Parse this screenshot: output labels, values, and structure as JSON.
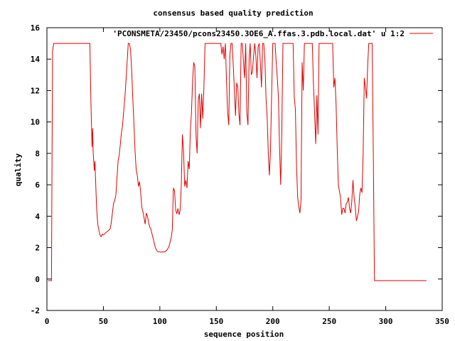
{
  "chart_data": {
    "type": "line",
    "title": "consensus based quality prediction",
    "xlabel": "sequence position",
    "ylabel": "quality",
    "xlim": [
      0,
      350
    ],
    "ylim": [
      -2,
      16
    ],
    "xticks": [
      0,
      50,
      100,
      150,
      200,
      250,
      300,
      350
    ],
    "yticks": [
      -2,
      0,
      2,
      4,
      6,
      8,
      10,
      12,
      14,
      16
    ],
    "grid": false,
    "legend_position": "top-right",
    "series": [
      {
        "name": "'PCONSMETA/23450/pcons23450.3OE6_A.ffas.3.pdb.local.dat' u 1:2",
        "color": "#e00000",
        "points": [
          [
            1,
            -0.1
          ],
          [
            4,
            -0.1
          ],
          [
            5,
            14.5
          ],
          [
            6,
            15
          ],
          [
            38,
            15
          ],
          [
            39,
            11
          ],
          [
            40,
            8.4
          ],
          [
            40.5,
            9.6
          ],
          [
            41,
            8
          ],
          [
            42,
            6.9
          ],
          [
            42.5,
            7.5
          ],
          [
            43,
            6.5
          ],
          [
            44,
            4.5
          ],
          [
            45,
            3.5
          ],
          [
            46,
            3.1
          ],
          [
            47,
            2.8
          ],
          [
            48,
            2.7
          ],
          [
            49,
            2.85
          ],
          [
            50,
            2.8
          ],
          [
            52,
            2.95
          ],
          [
            54,
            3.05
          ],
          [
            56,
            3.2
          ],
          [
            57,
            3.6
          ],
          [
            58,
            4.2
          ],
          [
            59,
            4.8
          ],
          [
            60,
            5.0
          ],
          [
            61,
            5.3
          ],
          [
            62,
            6.4
          ],
          [
            63,
            7.5
          ],
          [
            64,
            7.9
          ],
          [
            65,
            8.6
          ],
          [
            66,
            9.3
          ],
          [
            67,
            9.8
          ],
          [
            68,
            10.7
          ],
          [
            69,
            11.5
          ],
          [
            70,
            12.6
          ],
          [
            71,
            13.8
          ],
          [
            72,
            15
          ],
          [
            73,
            15
          ],
          [
            74,
            14.6
          ],
          [
            75,
            13.4
          ],
          [
            76,
            11.6
          ],
          [
            77,
            10.0
          ],
          [
            78,
            8.2
          ],
          [
            79,
            7.0
          ],
          [
            80,
            6.6
          ],
          [
            81,
            5.9
          ],
          [
            82,
            6.2
          ],
          [
            83,
            5.5
          ],
          [
            84,
            4.6
          ],
          [
            85,
            4.3
          ],
          [
            86,
            3.9
          ],
          [
            87,
            3.5
          ],
          [
            88,
            4.2
          ],
          [
            89,
            4.0
          ],
          [
            90,
            3.6
          ],
          [
            91,
            3.3
          ],
          [
            92,
            3.2
          ],
          [
            93,
            2.9
          ],
          [
            94,
            2.6
          ],
          [
            95,
            2.3
          ],
          [
            96,
            2.0
          ],
          [
            97,
            1.85
          ],
          [
            98,
            1.75
          ],
          [
            100,
            1.72
          ],
          [
            104,
            1.72
          ],
          [
            106,
            1.82
          ],
          [
            108,
            2.05
          ],
          [
            110,
            2.6
          ],
          [
            111,
            3.1
          ],
          [
            112,
            5.8
          ],
          [
            113,
            5.6
          ],
          [
            114,
            4.4
          ],
          [
            115,
            4.15
          ],
          [
            116,
            4.5
          ],
          [
            117,
            4.1
          ],
          [
            118,
            4.4
          ],
          [
            119,
            6.0
          ],
          [
            120,
            9.2
          ],
          [
            121,
            8.1
          ],
          [
            122,
            5.9
          ],
          [
            123,
            6.3
          ],
          [
            124,
            5.8
          ],
          [
            125,
            7.5
          ],
          [
            126,
            7.0
          ],
          [
            127,
            9.4
          ],
          [
            128,
            10.6
          ],
          [
            129,
            12.6
          ],
          [
            130,
            13.8
          ],
          [
            131,
            13.5
          ],
          [
            132,
            9.2
          ],
          [
            133,
            8.0
          ],
          [
            134,
            11.4
          ],
          [
            135,
            11.8
          ],
          [
            136,
            9.6
          ],
          [
            137,
            11.8
          ],
          [
            138,
            10.2
          ],
          [
            139,
            12.2
          ],
          [
            140,
            15
          ],
          [
            154,
            15
          ],
          [
            155,
            14.3
          ],
          [
            156,
            14.8
          ],
          [
            157,
            14.0
          ],
          [
            158,
            15
          ],
          [
            159,
            12.6
          ],
          [
            160,
            10.6
          ],
          [
            161,
            9.8
          ],
          [
            162,
            14.2
          ],
          [
            163,
            15
          ],
          [
            164,
            15
          ],
          [
            165,
            13.6
          ],
          [
            166,
            12.0
          ],
          [
            167,
            10.4
          ],
          [
            168,
            12.5
          ],
          [
            169,
            12.2
          ],
          [
            170,
            10.5
          ],
          [
            171,
            9.8
          ],
          [
            172,
            15
          ],
          [
            173,
            15
          ],
          [
            174,
            13.9
          ],
          [
            175,
            12.8
          ],
          [
            176,
            15
          ],
          [
            177,
            10.6
          ],
          [
            178,
            9.8
          ],
          [
            179,
            14.0
          ],
          [
            180,
            15
          ],
          [
            181,
            13.0
          ],
          [
            182,
            13.2
          ],
          [
            183,
            14.2
          ],
          [
            184,
            15
          ],
          [
            185,
            14.2
          ],
          [
            186,
            12.8
          ],
          [
            187,
            14.8
          ],
          [
            188,
            15
          ],
          [
            189,
            13.8
          ],
          [
            190,
            12.2
          ],
          [
            191,
            15
          ],
          [
            192,
            15
          ],
          [
            193,
            14.0
          ],
          [
            194,
            11.5
          ],
          [
            195,
            10.3
          ],
          [
            196,
            8.0
          ],
          [
            197,
            6.6
          ],
          [
            198,
            8.2
          ],
          [
            199,
            11.8
          ],
          [
            200,
            15
          ],
          [
            202,
            15
          ],
          [
            203,
            13.8
          ],
          [
            204,
            12.8
          ],
          [
            205,
            11.5
          ],
          [
            206,
            8.4
          ],
          [
            207,
            6.0
          ],
          [
            208,
            9.4
          ],
          [
            209,
            15
          ],
          [
            210,
            15
          ],
          [
            218,
            15
          ],
          [
            219,
            11.6
          ],
          [
            220,
            10.8
          ],
          [
            221,
            7.2
          ],
          [
            222,
            5.2
          ],
          [
            223,
            4.6
          ],
          [
            224,
            4.2
          ],
          [
            225,
            5.0
          ],
          [
            226,
            13.8
          ],
          [
            227,
            12.0
          ],
          [
            228,
            15
          ],
          [
            235,
            15
          ],
          [
            236,
            12.4
          ],
          [
            237,
            10.6
          ],
          [
            238,
            8.6
          ],
          [
            239,
            11.7
          ],
          [
            240,
            9.2
          ],
          [
            241,
            15
          ],
          [
            242,
            15
          ],
          [
            253,
            15
          ],
          [
            254,
            12.2
          ],
          [
            255,
            12.8
          ],
          [
            256,
            11.2
          ],
          [
            257,
            8.4
          ],
          [
            258,
            6.0
          ],
          [
            259,
            5.6
          ],
          [
            260,
            5.2
          ],
          [
            261,
            4.1
          ],
          [
            262,
            4.5
          ],
          [
            263,
            4.5
          ],
          [
            264,
            4.2
          ],
          [
            265,
            4.8
          ],
          [
            266,
            4.9
          ],
          [
            267,
            5.2
          ],
          [
            268,
            4.5
          ],
          [
            269,
            4.2
          ],
          [
            270,
            5.0
          ],
          [
            271,
            6.3
          ],
          [
            272,
            5.2
          ],
          [
            273,
            4.6
          ],
          [
            274,
            3.7
          ],
          [
            275,
            4.0
          ],
          [
            276,
            4.3
          ],
          [
            277,
            5.4
          ],
          [
            278,
            5.8
          ],
          [
            279,
            5.5
          ],
          [
            280,
            8.0
          ],
          [
            281,
            12.8
          ],
          [
            282,
            12.2
          ],
          [
            283,
            11.5
          ],
          [
            284,
            13.6
          ],
          [
            285,
            15
          ],
          [
            288,
            15
          ],
          [
            289,
            8.0
          ],
          [
            290,
            -0.1
          ],
          [
            336,
            -0.1
          ]
        ]
      }
    ]
  }
}
